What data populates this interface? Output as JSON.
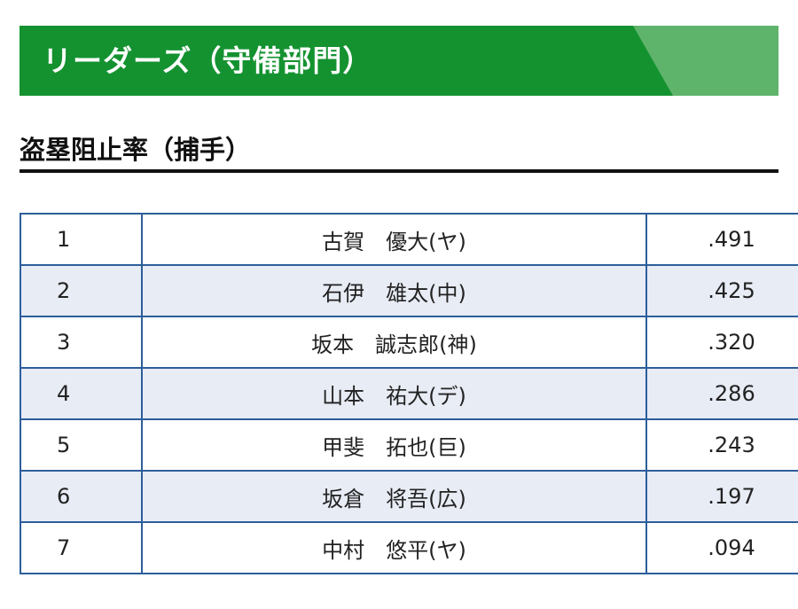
{
  "banner": {
    "title": "リーダーズ（守備部門）",
    "color": "#149230",
    "accent_color": "#5fb46b"
  },
  "section": {
    "title": "盗塁阻止率（捕手）"
  },
  "table": {
    "border_color": "#2d5e9b",
    "alt_row_color": "#e8ecf5",
    "rows": [
      {
        "rank": "1",
        "name": "古賀　優大(ヤ)",
        "value": ".491"
      },
      {
        "rank": "2",
        "name": "石伊　雄太(中)",
        "value": ".425"
      },
      {
        "rank": "3",
        "name": "坂本　誠志郎(神)",
        "value": ".320"
      },
      {
        "rank": "4",
        "name": "山本　祐大(デ)",
        "value": ".286"
      },
      {
        "rank": "5",
        "name": "甲斐　拓也(巨)",
        "value": ".243"
      },
      {
        "rank": "6",
        "name": "坂倉　将吾(広)",
        "value": ".197"
      },
      {
        "rank": "7",
        "name": "中村　悠平(ヤ)",
        "value": ".094"
      }
    ]
  }
}
